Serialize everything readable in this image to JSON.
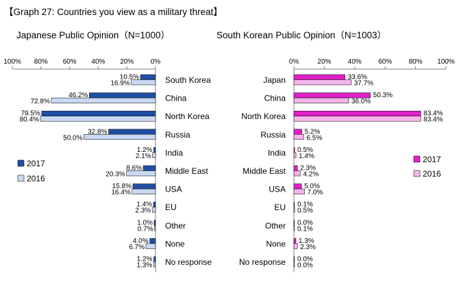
{
  "title": "【Graph 27: Countries you view as a military threat】",
  "colors": {
    "jp_2017": "#1f4ea3",
    "jp_2016": "#c9d9f2",
    "kr_2017": "#e020c8",
    "kr_2016": "#f6b5ec",
    "axis": "#808080",
    "edge": "#1a1a1a"
  },
  "chart_data": [
    {
      "type": "bar",
      "orientation": "horizontal",
      "direction": "reversed",
      "title": "Japanese Public Opinion（N=1000）",
      "xlim": [
        0,
        100
      ],
      "ticks": [
        "100%",
        "80%",
        "60%",
        "40%",
        "20%",
        "0%"
      ],
      "categories": [
        "South Korea",
        "China",
        "North Korea",
        "Russia",
        "India",
        "Middle East",
        "USA",
        "EU",
        "Other",
        "None",
        "No response"
      ],
      "series": [
        {
          "name": "2017",
          "values": [
            10.5,
            46.2,
            79.5,
            32.8,
            1.2,
            8.6,
            15.8,
            1.4,
            1.0,
            4.0,
            1.2
          ],
          "labels": [
            "10.5%",
            "46.2%",
            "79.5%",
            "32.8%",
            "1.2%",
            "8.6%",
            "15.8%",
            "1.4%",
            "1.0%",
            "4.0%",
            "1.2%"
          ]
        },
        {
          "name": "2016",
          "values": [
            16.9,
            72.8,
            80.4,
            50.0,
            2.1,
            20.3,
            16.4,
            2.3,
            0.7,
            6.7,
            1.3
          ],
          "labels": [
            "16.9%",
            "72.8%",
            "80.4%",
            "50.0%",
            "2.1%",
            "20.3%",
            "16.4%",
            "2.3%",
            "0.7%",
            "6.7%",
            "1.3%"
          ]
        }
      ],
      "legend": [
        "2017",
        "2016"
      ],
      "legend_position": "left"
    },
    {
      "type": "bar",
      "orientation": "horizontal",
      "title": "South Korean Public Opinion（N=1003）",
      "xlim": [
        0,
        100
      ],
      "ticks": [
        "0%",
        "20%",
        "40%",
        "60%",
        "80%",
        "100%"
      ],
      "categories": [
        "Japan",
        "China",
        "North Korea",
        "Russia",
        "India",
        "Middle East",
        "USA",
        "EU",
        "Other",
        "None",
        "No response"
      ],
      "series": [
        {
          "name": "2017",
          "values": [
            33.6,
            50.3,
            83.4,
            5.2,
            0.5,
            2.3,
            5.0,
            0.1,
            0.0,
            1.3,
            0.0
          ],
          "labels": [
            "33.6%",
            "50.3%",
            "83.4%",
            "5.2%",
            "0.5%",
            "2.3%",
            "5.0%",
            "0.1%",
            "0.0%",
            "1.3%",
            "0.0%"
          ]
        },
        {
          "name": "2016",
          "values": [
            37.7,
            36.0,
            83.4,
            6.5,
            1.4,
            4.2,
            7.0,
            0.5,
            0.1,
            2.3,
            0.0
          ],
          "labels": [
            "37.7%",
            "36.0%",
            "83.4%",
            "6.5%",
            "1.4%",
            "4.2%",
            "7.0%",
            "0.5%",
            "0.1%",
            "2.3%",
            "0.0%"
          ]
        }
      ],
      "legend": [
        "2017",
        "2016"
      ],
      "legend_position": "right"
    }
  ]
}
